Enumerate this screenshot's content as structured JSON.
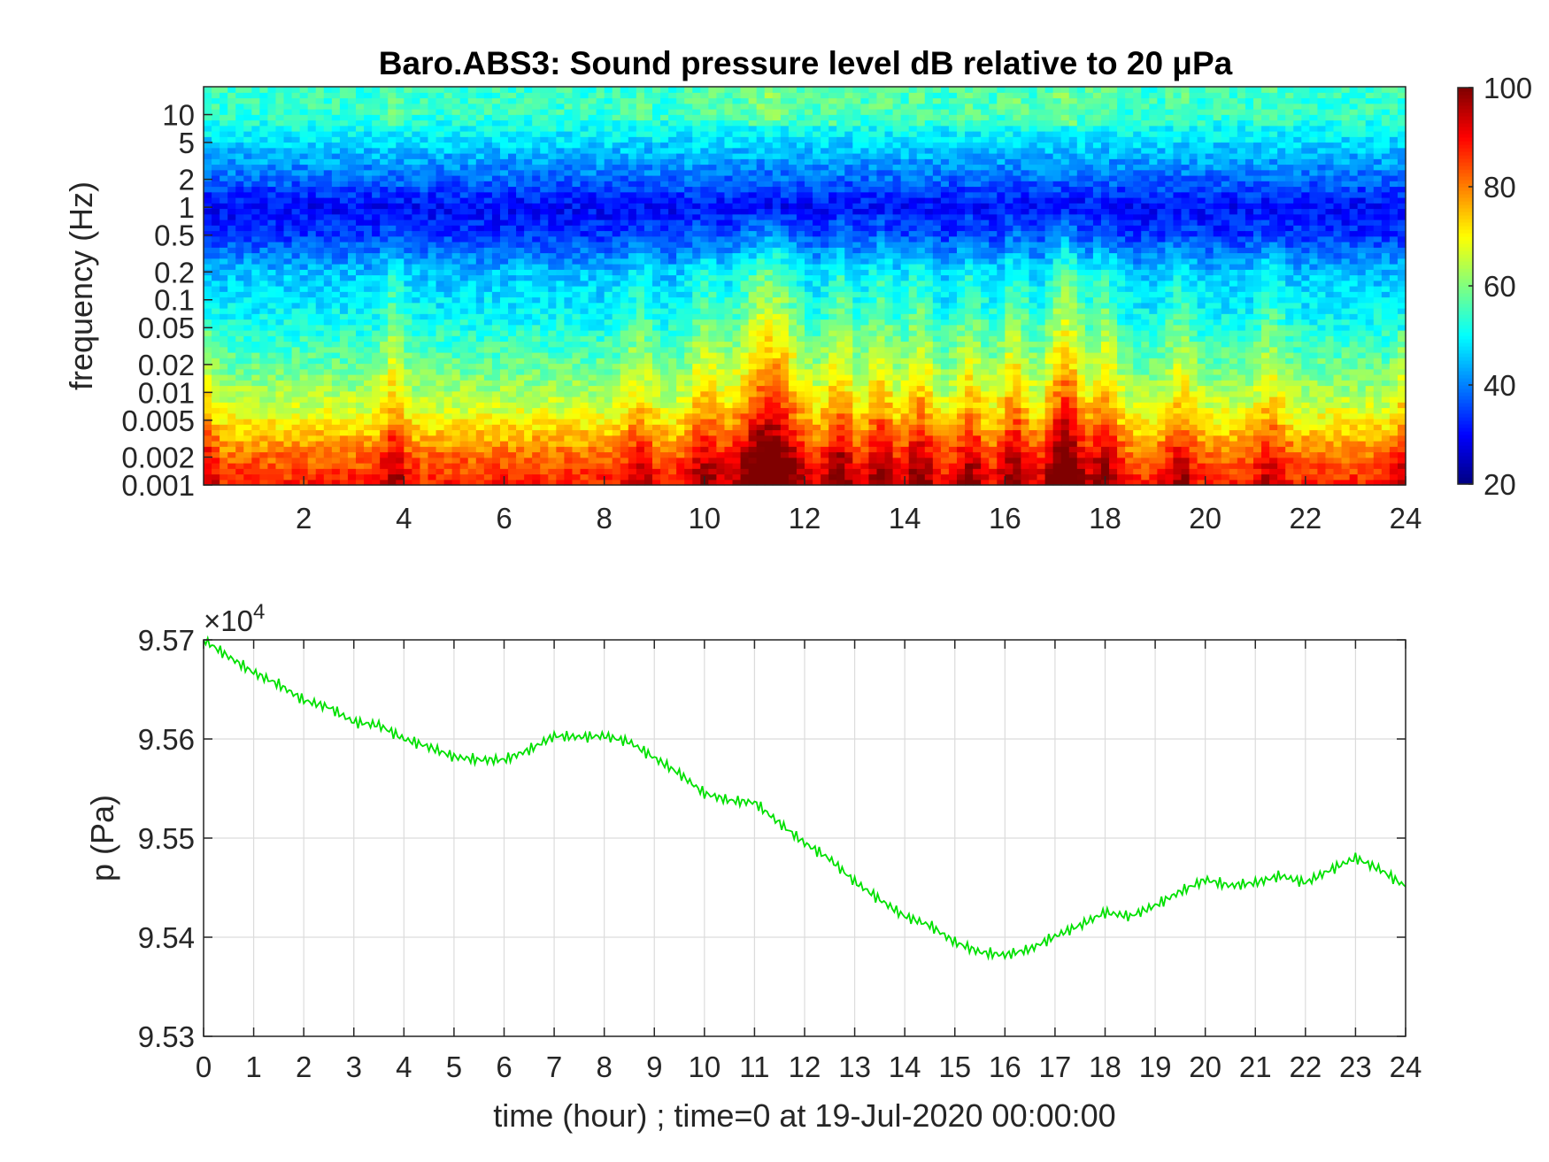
{
  "chart_data": [
    {
      "type": "heatmap",
      "title": "Baro.ABS3: Sound pressure level dB relative to 20 μPa",
      "ylabel": "frequency (Hz)",
      "xlabel": "",
      "x_ticks": [
        "2",
        "4",
        "6",
        "8",
        "10",
        "12",
        "14",
        "16",
        "18",
        "20",
        "22",
        "24"
      ],
      "y_ticks": [
        "10",
        "5",
        "2",
        "1",
        "0.5",
        "0.2",
        "0.1",
        "0.05",
        "0.02",
        "0.01",
        "0.005",
        "0.002",
        "0.001"
      ],
      "y_scale": "log",
      "xlim": [
        0,
        24
      ],
      "ylim": [
        0.001,
        20
      ],
      "colormap": "jet",
      "colorbar": {
        "ticks": [
          "100",
          "80",
          "60",
          "40",
          "20"
        ],
        "clim": [
          20,
          100
        ]
      },
      "z_description_units": "dB",
      "band_levels_db": [
        {
          "freq_hz": 10,
          "level": 54
        },
        {
          "freq_hz": 2,
          "level": 38
        },
        {
          "freq_hz": 1,
          "level": 30
        },
        {
          "freq_hz": 0.5,
          "level": 34
        },
        {
          "freq_hz": 0.2,
          "level": 45
        },
        {
          "freq_hz": 0.1,
          "level": 48
        },
        {
          "freq_hz": 0.05,
          "level": 52
        },
        {
          "freq_hz": 0.02,
          "level": 58
        },
        {
          "freq_hz": 0.01,
          "level": 63
        },
        {
          "freq_hz": 0.005,
          "level": 70
        },
        {
          "freq_hz": 0.002,
          "level": 82
        },
        {
          "freq_hz": 0.001,
          "level": 88
        }
      ],
      "bursts": [
        {
          "hour": 3.8,
          "strength": 0.45,
          "width": 0.25
        },
        {
          "hour": 8.7,
          "strength": 0.35,
          "width": 0.3
        },
        {
          "hour": 10.0,
          "strength": 0.45,
          "width": 0.35
        },
        {
          "hour": 11.3,
          "strength": 1.0,
          "width": 0.65
        },
        {
          "hour": 12.7,
          "strength": 0.6,
          "width": 0.3
        },
        {
          "hour": 13.5,
          "strength": 0.55,
          "width": 0.3
        },
        {
          "hour": 14.3,
          "strength": 0.55,
          "width": 0.3
        },
        {
          "hour": 15.3,
          "strength": 0.5,
          "width": 0.3
        },
        {
          "hour": 16.2,
          "strength": 0.6,
          "width": 0.3
        },
        {
          "hour": 17.2,
          "strength": 0.95,
          "width": 0.35
        },
        {
          "hour": 18.0,
          "strength": 0.55,
          "width": 0.3
        },
        {
          "hour": 19.5,
          "strength": 0.4,
          "width": 0.3
        },
        {
          "hour": 21.3,
          "strength": 0.35,
          "width": 0.3
        }
      ]
    },
    {
      "type": "line",
      "title": "",
      "xlabel": "time (hour) ; time=0 at 19-Jul-2020 00:00:00",
      "ylabel": "p (Pa)",
      "y_exponent_label": "×10",
      "y_exponent_power": "4",
      "xlim": [
        0,
        24
      ],
      "ylim": [
        9.53,
        9.57
      ],
      "grid": true,
      "x_ticks": [
        "0",
        "1",
        "2",
        "3",
        "4",
        "5",
        "6",
        "7",
        "8",
        "9",
        "10",
        "11",
        "12",
        "13",
        "14",
        "15",
        "16",
        "17",
        "18",
        "19",
        "20",
        "21",
        "22",
        "23",
        "24"
      ],
      "y_ticks": [
        "9.53",
        "9.54",
        "9.55",
        "9.56",
        "9.57"
      ],
      "line_color": "#00e000",
      "series": [
        {
          "x": [
            0,
            0.5,
            1,
            1.5,
            2,
            2.5,
            3,
            3.5,
            4,
            4.5,
            5,
            5.5,
            6,
            6.5,
            7,
            7.5,
            8,
            8.5,
            9,
            9.5,
            10,
            10.5,
            11,
            11.5,
            12,
            12.5,
            13,
            13.5,
            14,
            14.5,
            15,
            15.5,
            16,
            16.5,
            17,
            17.5,
            18,
            18.5,
            19,
            19.5,
            20,
            20.5,
            21,
            21.5,
            22,
            22.5,
            23,
            23.5,
            24
          ],
          "y": [
            9.57,
            9.5683,
            9.5667,
            9.5655,
            9.5639,
            9.5632,
            9.5617,
            9.5614,
            9.56,
            9.5592,
            9.5582,
            9.5579,
            9.5579,
            9.5589,
            9.5603,
            9.5602,
            9.5603,
            9.5597,
            9.5581,
            9.5565,
            9.5545,
            9.5538,
            9.5536,
            9.5515,
            9.5495,
            9.5479,
            9.5456,
            9.5438,
            9.5421,
            9.5412,
            9.5395,
            9.5385,
            9.5382,
            9.5388,
            9.5401,
            9.5412,
            9.5425,
            9.5421,
            9.5432,
            9.5446,
            9.5458,
            9.5452,
            9.5455,
            9.5462,
            9.5455,
            9.5468,
            9.548,
            9.5468,
            9.5451
          ]
        }
      ]
    }
  ]
}
